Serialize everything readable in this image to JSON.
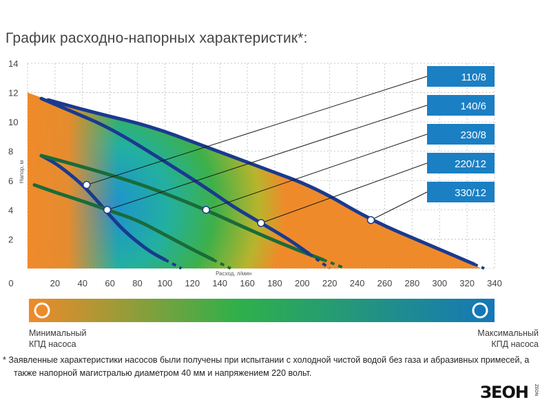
{
  "title": "График расходно-напорных характеристик*:",
  "chart_data": {
    "type": "line",
    "xlabel": "Расход, л/мин",
    "ylabel": "Напор, м",
    "xlim": [
      0,
      340
    ],
    "ylim": [
      0,
      14
    ],
    "xticks": [
      "0",
      "20",
      "40",
      "60",
      "80",
      "100",
      "120",
      "140",
      "160",
      "180",
      "200",
      "220",
      "240",
      "260",
      "280",
      "300",
      "320",
      "340"
    ],
    "yticks": [
      "2",
      "4",
      "6",
      "8",
      "10",
      "12",
      "14"
    ],
    "grid": true,
    "series": [
      {
        "name": "110/8",
        "color": "#1a3a8f",
        "x": [
          10,
          20,
          30,
          40,
          50,
          60,
          70,
          80,
          90,
          100
        ],
        "y": [
          7.7,
          7.2,
          6.5,
          5.7,
          4.7,
          3.6,
          2.6,
          1.8,
          1.1,
          0.6
        ]
      },
      {
        "name": "140/6",
        "color": "#1a6b3a",
        "x": [
          5,
          20,
          40,
          58,
          80,
          100,
          120,
          135
        ],
        "y": [
          5.7,
          5.2,
          4.6,
          4.0,
          3.3,
          2.3,
          1.3,
          0.6
        ]
      },
      {
        "name": "230/8",
        "color": "#1a6b3a",
        "x": [
          10,
          30,
          60,
          90,
          130,
          160,
          190,
          215
        ],
        "y": [
          7.7,
          7.2,
          6.4,
          5.5,
          4.0,
          2.7,
          1.5,
          0.6
        ]
      },
      {
        "name": "220/12",
        "color": "#1a3a8f",
        "x": [
          10,
          30,
          60,
          100,
          130,
          150,
          170,
          190,
          205
        ],
        "y": [
          11.6,
          10.8,
          9.6,
          7.3,
          5.5,
          4.2,
          3.1,
          2.0,
          1.0
        ]
      },
      {
        "name": "330/12",
        "color": "#1a3a8f",
        "x": [
          15,
          50,
          90,
          130,
          170,
          210,
          250,
          290,
          325
        ],
        "y": [
          11.5,
          10.6,
          9.7,
          8.3,
          6.9,
          5.5,
          3.3,
          1.7,
          0.3
        ]
      }
    ],
    "markers": [
      {
        "series": "110/8",
        "x": 43,
        "y": 5.7
      },
      {
        "series": "140/6",
        "x": 58,
        "y": 4.0
      },
      {
        "series": "230/8",
        "x": 130,
        "y": 4.0
      },
      {
        "series": "220/12",
        "x": 170,
        "y": 3.1
      },
      {
        "series": "330/12",
        "x": 250,
        "y": 3.3
      }
    ],
    "legend": {
      "placement": "right",
      "background": "#1b7fc4"
    }
  },
  "efficiency_bar": {
    "min_label_line1": "Минимальный",
    "min_label_line2": "КПД насоса",
    "max_label_line1": "Максимальный",
    "max_label_line2": "КПД насоса",
    "color_min": "#ef8a2a",
    "color_mid": "#2fb04a",
    "color_max": "#1577b8"
  },
  "footnote": {
    "line1": "* Заявленные характеристики насосов были получены при испытании с холодной чистой водой без газа и абразивных примесей, а",
    "line2": "также напорной магистралью диаметром 40 мм и напряжением 220 вольт."
  },
  "logo": {
    "text": "ЗЕОН",
    "sub": "ZEON"
  }
}
